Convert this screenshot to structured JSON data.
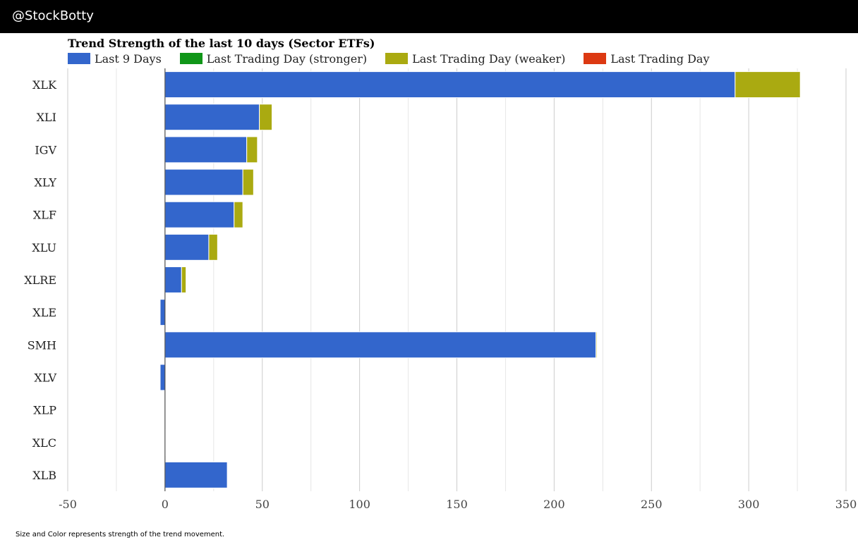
{
  "header": {
    "handle": "@StockBotty"
  },
  "footnote": "Size and Color represents strength of the trend movement.",
  "colors": {
    "last9": "#3366cc",
    "stronger": "#109618",
    "weaker": "#aaaa11",
    "last_day": "#dc3912",
    "grid": "#cccccc",
    "axis": "#333333"
  },
  "chart_data": {
    "type": "bar",
    "orientation": "horizontal",
    "stacked": true,
    "title": "Trend Strength of the last 10 days (Sector ETFs)",
    "legend": {
      "last9": "Last 9 Days",
      "stronger": "Last Trading Day (stronger)",
      "weaker": "Last Trading Day (weaker)",
      "last_day": "Last Trading Day"
    },
    "legend_position": "top-left",
    "categories": [
      "XLK",
      "XLI",
      "IGV",
      "XLY",
      "XLF",
      "XLU",
      "XLRE",
      "XLE",
      "SMH",
      "XLV",
      "XLP",
      "XLC",
      "XLB"
    ],
    "series": [
      {
        "name": "Last 9 Days",
        "key": "last9",
        "values": [
          293,
          48.5,
          42,
          40,
          35.5,
          22.5,
          8.5,
          -2.5,
          221.5,
          -2.5,
          0,
          0,
          32
        ]
      },
      {
        "name": "Last Trading Day (stronger)",
        "key": "stronger",
        "values": [
          0,
          0,
          0,
          0,
          0,
          0,
          0,
          0,
          0,
          0,
          0,
          0,
          0
        ]
      },
      {
        "name": "Last Trading Day (weaker)",
        "key": "weaker",
        "values": [
          33.5,
          6.5,
          5.5,
          5.5,
          4.5,
          4.5,
          2.3,
          0,
          0.5,
          0,
          0,
          0,
          0
        ]
      },
      {
        "name": "Last Trading Day",
        "key": "last_day",
        "values": [
          0,
          0,
          0,
          0,
          0,
          0,
          0,
          0,
          0,
          0,
          0,
          0.3,
          0
        ]
      }
    ],
    "xlim": [
      -50,
      350
    ],
    "xticks": [
      -50,
      0,
      50,
      100,
      150,
      200,
      250,
      300,
      350
    ],
    "grid": true
  }
}
